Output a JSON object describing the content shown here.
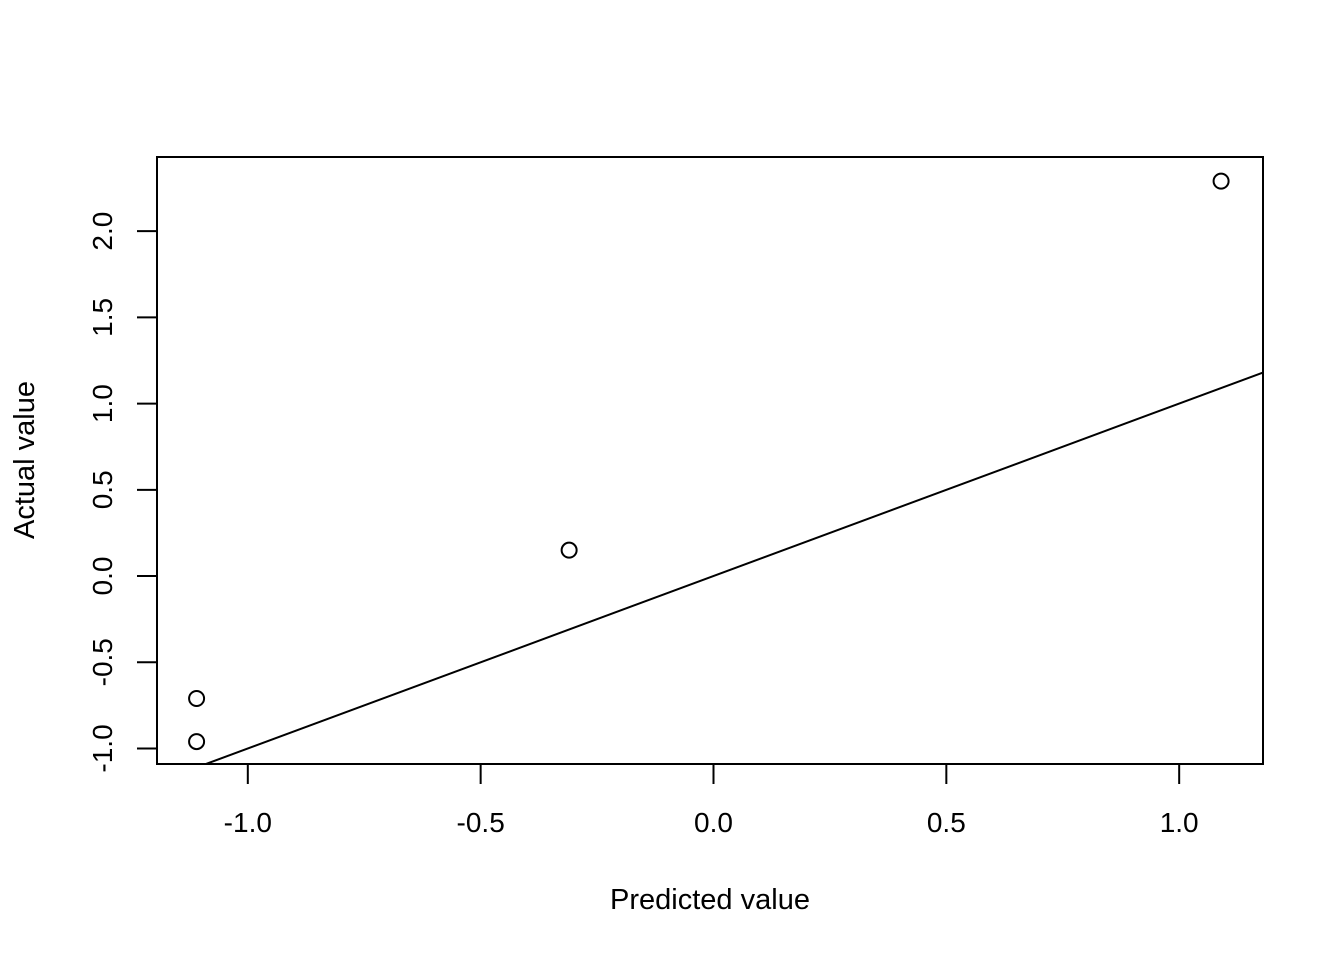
{
  "chart_data": {
    "type": "scatter",
    "title": "",
    "xlabel": "Predicted value",
    "ylabel": "Actual value",
    "xlim": [
      -1.195,
      1.18
    ],
    "ylim": [
      -1.09,
      2.43
    ],
    "xticks": [
      -1.0,
      -0.5,
      0.0,
      0.5,
      1.0
    ],
    "xtick_labels": [
      "-1.0",
      "-0.5",
      "0.0",
      "0.5",
      "1.0"
    ],
    "yticks": [
      -1.0,
      -0.5,
      0.0,
      0.5,
      1.0,
      1.5,
      2.0
    ],
    "ytick_labels": [
      "-1.0",
      "-0.5",
      "0.0",
      "0.5",
      "1.0",
      "1.5",
      "2.0"
    ],
    "points": [
      {
        "x": -1.11,
        "y": -0.71
      },
      {
        "x": -1.11,
        "y": -0.96
      },
      {
        "x": -0.31,
        "y": 0.15
      },
      {
        "x": 1.09,
        "y": 2.29
      }
    ],
    "reference_line": {
      "intercept": 0,
      "slope": 1
    },
    "grid": false,
    "legend": "none"
  }
}
